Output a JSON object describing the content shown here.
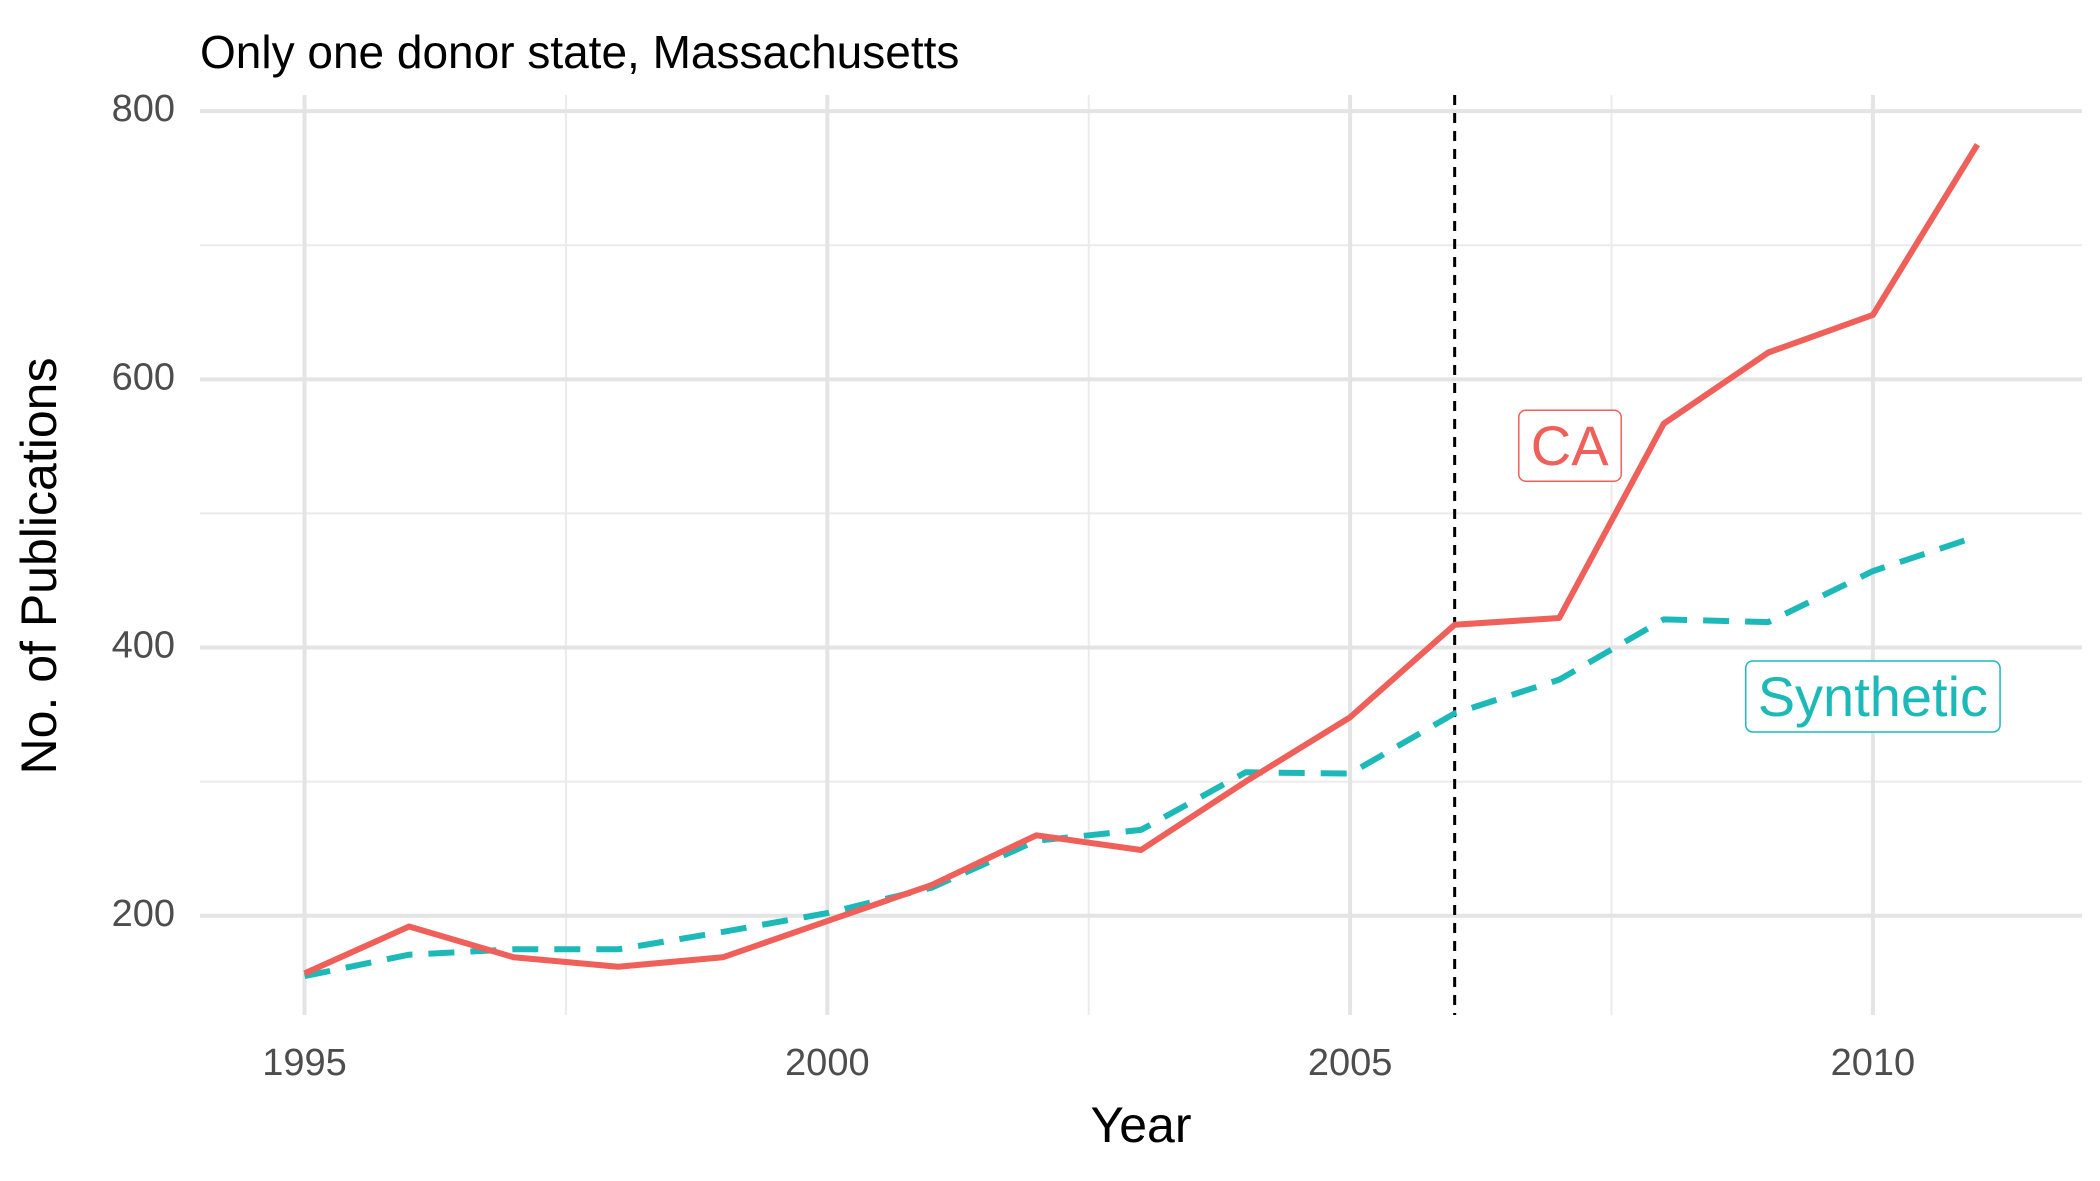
{
  "chart_data": {
    "type": "line",
    "title": "Only one donor state, Massachusetts",
    "xlabel": "Year",
    "ylabel": "No. of Publications",
    "xlim": [
      1994,
      2012
    ],
    "ylim": [
      126,
      812
    ],
    "x_major_ticks": [
      1995,
      2000,
      2005,
      2010
    ],
    "x_minor_ticks": [
      1997.5,
      2002.5,
      2007.5
    ],
    "y_major_ticks": [
      200,
      400,
      600,
      800
    ],
    "y_minor_ticks": [
      300,
      500,
      700
    ],
    "x_tick_labels": [
      "1995",
      "2000",
      "2005",
      "2010"
    ],
    "y_tick_labels": [
      "200",
      "400",
      "600",
      "800"
    ],
    "grid": true,
    "intervention_line": {
      "x": 2006,
      "style": "dashed",
      "color": "#000000"
    },
    "x": [
      1995,
      1996,
      1997,
      1998,
      1999,
      2000,
      2001,
      2002,
      2003,
      2004,
      2005,
      2006,
      2007,
      2008,
      2009,
      2010,
      2011
    ],
    "series": [
      {
        "name": "CA",
        "color": "#F0605B",
        "style": "solid",
        "values": [
          157,
          192,
          169,
          162,
          169,
          196,
          223,
          260,
          249,
          300,
          348,
          417,
          422,
          567,
          620,
          648,
          775
        ],
        "label": {
          "text": "CA",
          "x": 2007.1,
          "y": 547
        }
      },
      {
        "name": "Synthetic",
        "color": "#1DB9B9",
        "style": "dashed",
        "values": [
          155,
          171,
          175,
          175,
          188,
          202,
          221,
          256,
          264,
          307,
          306,
          351,
          376,
          421,
          419,
          457,
          483
        ],
        "label": {
          "text": "Synthetic",
          "x": 2010.0,
          "y": 360
        }
      }
    ]
  }
}
